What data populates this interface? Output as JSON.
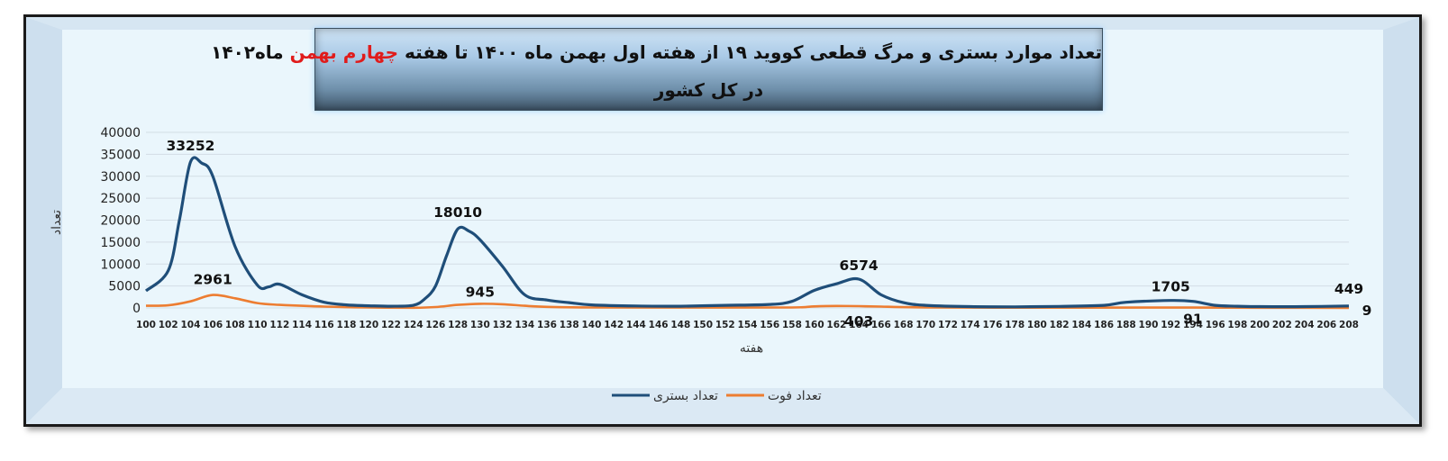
{
  "title": {
    "line1_before": "تعداد موارد بستری و مرگ قطعی کووید ۱۹  از هفته اول بهمن ماه ۱۴۰۰ تا هفته ",
    "line1_highlight": "چهارم بهمن",
    "line1_after": " ماه۱۴۰۲",
    "line2": "در کل کشور",
    "highlight_color": "#e01b1b"
  },
  "chart_data": {
    "type": "line",
    "xlabel": "هفته",
    "ylabel": "تعداد",
    "ylim": [
      0,
      40000
    ],
    "yticks": [
      0,
      5000,
      10000,
      15000,
      20000,
      25000,
      30000,
      35000,
      40000
    ],
    "xticks": [
      100,
      102,
      104,
      106,
      108,
      110,
      112,
      114,
      116,
      118,
      120,
      122,
      124,
      126,
      128,
      130,
      132,
      134,
      136,
      138,
      140,
      142,
      144,
      146,
      148,
      150,
      152,
      154,
      156,
      158,
      160,
      162,
      164,
      166,
      168,
      170,
      172,
      174,
      176,
      178,
      180,
      182,
      184,
      186,
      188,
      190,
      192,
      194,
      196,
      198,
      200,
      202,
      204,
      206,
      208
    ],
    "grid": true,
    "legend_position": "bottom",
    "series": [
      {
        "name": "تعداد بستری",
        "color": "#1f4e79",
        "x": [
          100,
          102,
          103,
          104,
          105,
          106,
          108,
          110,
          111,
          112,
          114,
          116,
          118,
          120,
          122,
          124,
          125,
          126,
          127,
          128,
          129,
          130,
          132,
          134,
          136,
          138,
          140,
          144,
          148,
          152,
          156,
          158,
          160,
          162,
          164,
          166,
          168,
          170,
          174,
          178,
          182,
          186,
          188,
          192,
          194,
          196,
          198,
          200,
          204,
          208
        ],
        "y": [
          3900,
          8500,
          20000,
          33252,
          33000,
          30000,
          14000,
          5200,
          4800,
          5400,
          3000,
          1300,
          700,
          500,
          400,
          600,
          2000,
          5000,
          12000,
          18010,
          17500,
          15500,
          9500,
          3000,
          1800,
          1200,
          700,
          450,
          400,
          600,
          800,
          1500,
          4000,
          5500,
          6574,
          3000,
          1200,
          600,
          300,
          250,
          350,
          600,
          1300,
          1705,
          1500,
          600,
          400,
          300,
          300,
          449
        ]
      },
      {
        "name": "تعداد فوت",
        "color": "#ed7d31",
        "x": [
          100,
          102,
          104,
          106,
          108,
          110,
          112,
          116,
          120,
          124,
          126,
          128,
          130,
          132,
          134,
          136,
          140,
          150,
          158,
          160,
          162,
          164,
          166,
          170,
          180,
          190,
          194,
          200,
          208
        ],
        "y": [
          500,
          600,
          1500,
          2961,
          2200,
          1100,
          700,
          300,
          100,
          50,
          200,
          700,
          945,
          850,
          500,
          250,
          100,
          80,
          100,
          350,
          450,
          403,
          300,
          120,
          60,
          80,
          91,
          40,
          9
        ]
      }
    ],
    "annotations": [
      {
        "label": "33252",
        "x": 104,
        "y": 33252
      },
      {
        "label": "2961",
        "x": 106,
        "y": 2961
      },
      {
        "label": "18010",
        "x": 128,
        "y": 18010
      },
      {
        "label": "945",
        "x": 130,
        "y": 945
      },
      {
        "label": "6574",
        "x": 164,
        "y": 6574
      },
      {
        "label": "403",
        "x": 164,
        "y": 403
      },
      {
        "label": "1705",
        "x": 192,
        "y": 1705
      },
      {
        "label": "91",
        "x": 194,
        "y": 91
      },
      {
        "label": "449",
        "x": 208,
        "y": 449
      },
      {
        "label": "9",
        "x": 208,
        "y": 9
      }
    ]
  }
}
